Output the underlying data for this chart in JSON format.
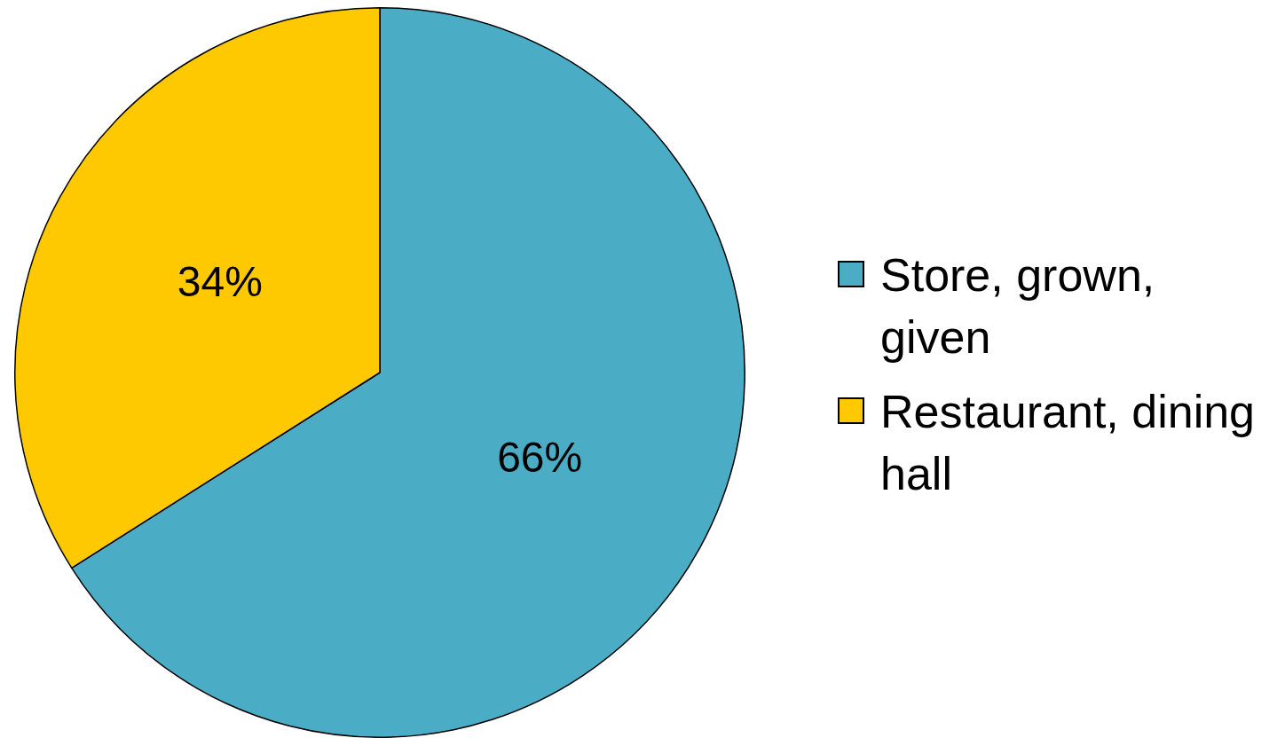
{
  "chart_data": {
    "type": "pie",
    "categories": [
      "Store, grown, given",
      "Restaurant, dining hall"
    ],
    "values": [
      66,
      34
    ],
    "colors": [
      "#4bacc6",
      "#ffc901"
    ],
    "value_labels": [
      "66%",
      "34%"
    ],
    "legend": "right"
  }
}
